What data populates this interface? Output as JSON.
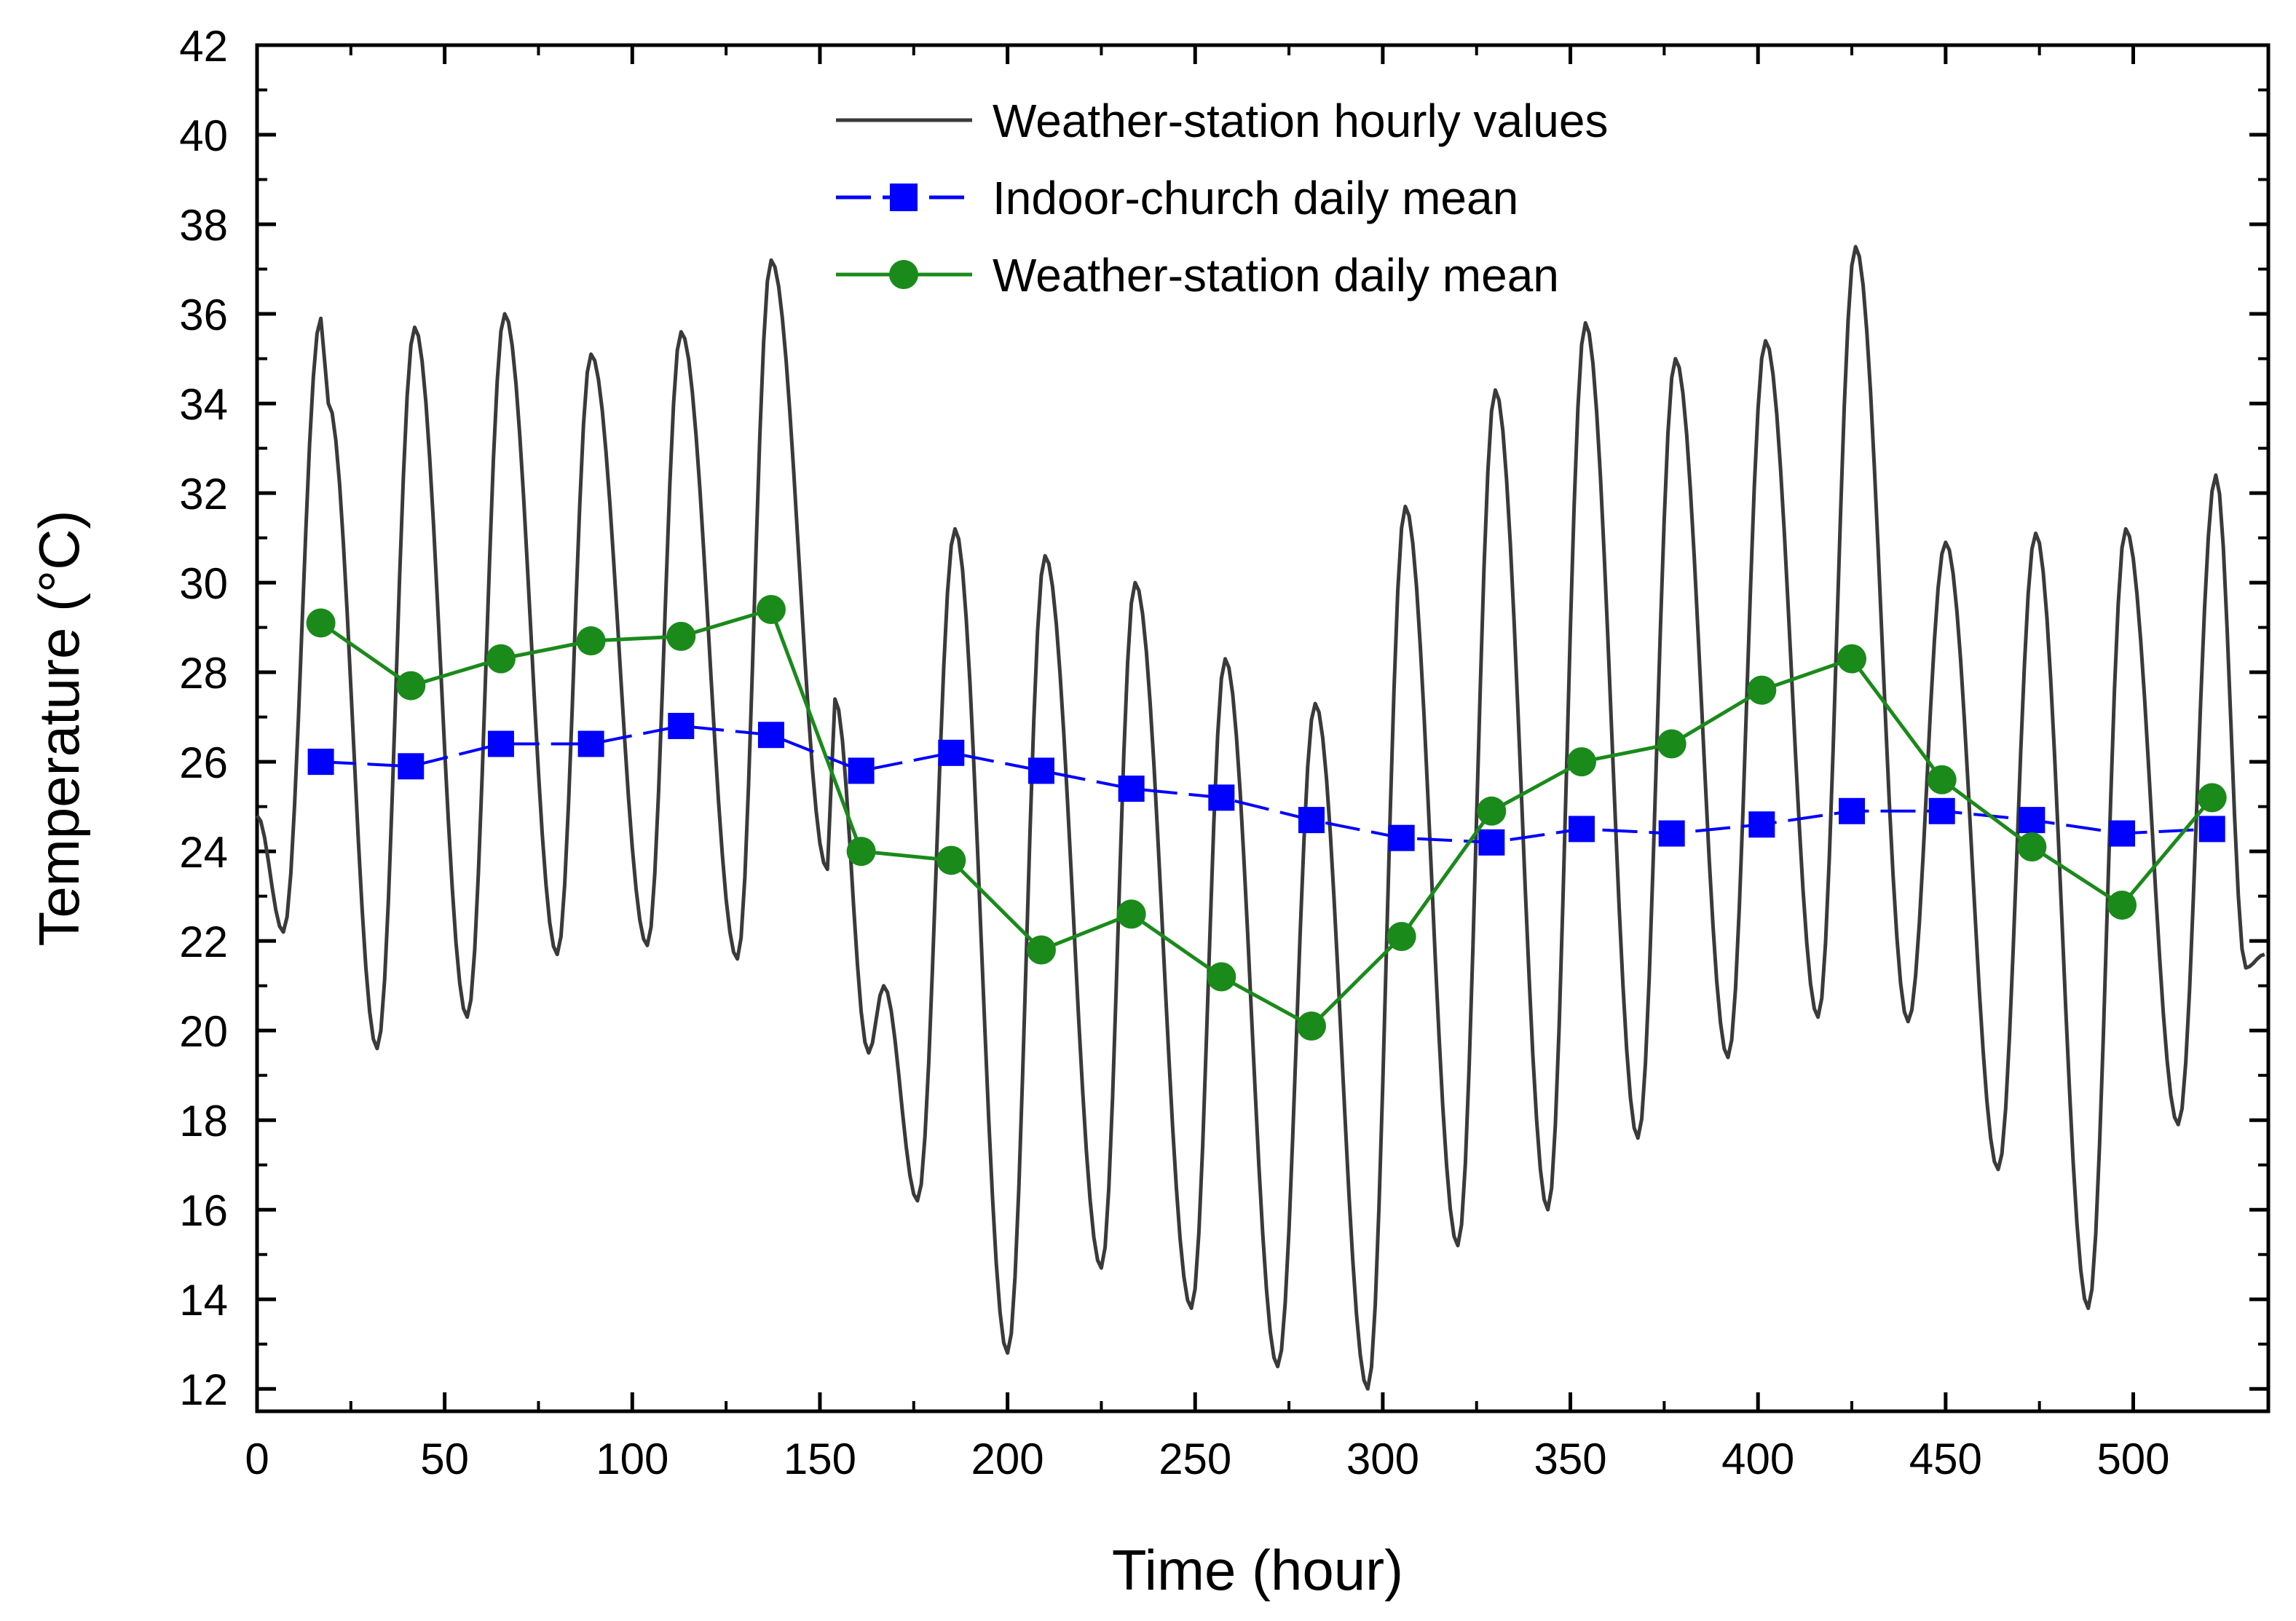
{
  "chart_data": {
    "type": "line",
    "xlabel": "Time (hour)",
    "ylabel": "Temperature (°C)",
    "xlim": [
      0,
      536
    ],
    "ylim": [
      11.5,
      42
    ],
    "xticks": [
      0,
      50,
      100,
      150,
      200,
      250,
      300,
      350,
      400,
      450,
      500
    ],
    "yticks": [
      12,
      14,
      16,
      18,
      20,
      22,
      24,
      26,
      28,
      30,
      32,
      34,
      36,
      38,
      40,
      42
    ],
    "legend_position": "top-center",
    "grid": false,
    "series": [
      {
        "name": "Weather-station hourly values",
        "style": "line",
        "color": "#3a3a3a",
        "daily_extremes": [
          [
            0,
            24.8
          ],
          [
            7,
            22.2
          ],
          [
            17,
            35.9
          ],
          [
            19,
            34.0
          ],
          [
            32,
            19.6
          ],
          [
            42,
            35.7
          ],
          [
            56,
            20.3
          ],
          [
            66,
            36.0
          ],
          [
            80,
            21.7
          ],
          [
            89,
            35.1
          ],
          [
            104,
            21.9
          ],
          [
            113,
            35.6
          ],
          [
            128,
            21.6
          ],
          [
            137,
            37.2
          ],
          [
            152,
            23.6
          ],
          [
            154,
            27.4
          ],
          [
            163,
            19.5
          ],
          [
            167,
            21.0
          ],
          [
            176,
            16.2
          ],
          [
            186,
            31.2
          ],
          [
            200,
            12.8
          ],
          [
            210,
            30.6
          ],
          [
            225,
            14.7
          ],
          [
            234,
            30.0
          ],
          [
            249,
            13.8
          ],
          [
            258,
            28.3
          ],
          [
            272,
            12.5
          ],
          [
            282,
            27.3
          ],
          [
            296,
            12.0
          ],
          [
            306,
            31.7
          ],
          [
            320,
            15.2
          ],
          [
            330,
            34.3
          ],
          [
            344,
            16.0
          ],
          [
            354,
            35.8
          ],
          [
            368,
            17.6
          ],
          [
            378,
            35.0
          ],
          [
            392,
            19.4
          ],
          [
            402,
            35.4
          ],
          [
            416,
            20.3
          ],
          [
            426,
            37.5
          ],
          [
            440,
            20.2
          ],
          [
            450,
            30.9
          ],
          [
            464,
            16.9
          ],
          [
            474,
            31.1
          ],
          [
            488,
            13.8
          ],
          [
            498,
            31.2
          ],
          [
            512,
            17.9
          ],
          [
            522,
            32.4
          ],
          [
            530,
            21.4
          ],
          [
            535,
            21.7
          ]
        ]
      },
      {
        "name": "Indoor-church daily mean",
        "style": "line-square",
        "color": "#0000ff",
        "x": [
          17,
          41,
          65,
          89,
          113,
          137,
          161,
          185,
          209,
          233,
          257,
          281,
          305,
          329,
          353,
          377,
          401,
          425,
          449,
          473,
          497,
          521
        ],
        "y": [
          26.0,
          25.9,
          26.4,
          26.4,
          26.8,
          26.6,
          25.8,
          26.2,
          25.8,
          25.4,
          25.2,
          24.7,
          24.3,
          24.2,
          24.5,
          24.4,
          24.6,
          24.9,
          24.9,
          24.7,
          24.4,
          24.5
        ]
      },
      {
        "name": "Weather-station daily mean",
        "style": "line-circle",
        "color": "#1a8a1a",
        "x": [
          17,
          41,
          65,
          89,
          113,
          137,
          161,
          185,
          209,
          233,
          257,
          281,
          305,
          329,
          353,
          377,
          401,
          425,
          449,
          473,
          497,
          521
        ],
        "y": [
          29.1,
          27.7,
          28.3,
          28.7,
          28.8,
          29.4,
          24.0,
          23.8,
          21.8,
          22.6,
          21.2,
          20.1,
          22.1,
          24.9,
          26.0,
          26.4,
          27.6,
          28.3,
          25.6,
          24.1,
          22.8,
          25.2
        ]
      }
    ]
  }
}
